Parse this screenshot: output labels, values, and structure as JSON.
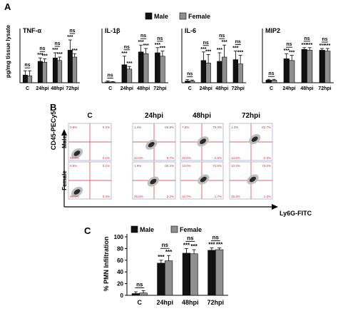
{
  "panel_labels": [
    "A",
    "B",
    "C"
  ],
  "colors": {
    "male": "#111111",
    "female": "#8f8f8f"
  },
  "legend": {
    "male": "Male",
    "female": "Female"
  },
  "panel_a": {
    "ylabel": "pg/mg tissue lysate",
    "sig_text": "ns"
  },
  "chart_data": [
    {
      "type": "bar",
      "title": "TNF-α",
      "categories": [
        "C",
        "24hpi",
        "48hpi",
        "72hpi"
      ],
      "series": [
        {
          "name": "Male",
          "values": [
            0.45,
            1.25,
            1.45,
            1.9
          ],
          "errors": [
            0.25,
            0.2,
            0.3,
            0.6
          ]
        },
        {
          "name": "Female",
          "values": [
            0.4,
            1.2,
            1.3,
            1.5
          ],
          "errors": [
            0.3,
            0.2,
            0.2,
            0.2
          ]
        }
      ],
      "ylim": [
        0,
        3
      ],
      "sig": [
        "ns",
        "ns",
        "ns",
        "ns"
      ]
    },
    {
      "type": "bar",
      "title": "IL-1β",
      "categories": [
        "C",
        "24hpi",
        "48hpi",
        "72hpi"
      ],
      "series": [
        {
          "name": "Male",
          "values": [
            0.05,
            1.05,
            1.8,
            1.75
          ],
          "errors": [
            0.05,
            0.5,
            0.4,
            0.3
          ]
        },
        {
          "name": "Female",
          "values": [
            0.04,
            0.8,
            1.7,
            1.55
          ],
          "errors": [
            0.03,
            0.15,
            0.3,
            0.3
          ]
        }
      ],
      "ylim": [
        0,
        3
      ],
      "sig": [
        "ns",
        "ns",
        "ns",
        "ns"
      ]
    },
    {
      "type": "bar",
      "title": "IL-6",
      "categories": [
        "C",
        "24hpi",
        "48hpi",
        "72hpi"
      ],
      "series": [
        {
          "name": "Male",
          "values": [
            0.1,
            1.3,
            1.25,
            1.35
          ],
          "errors": [
            0.08,
            0.5,
            0.5,
            0.5
          ]
        },
        {
          "name": "Female",
          "values": [
            0.1,
            1.15,
            1.5,
            1.1
          ],
          "errors": [
            0.06,
            0.5,
            0.7,
            0.5
          ]
        }
      ],
      "ylim": [
        0,
        3
      ],
      "sig": [
        "ns",
        "ns",
        "ns",
        "ns"
      ]
    },
    {
      "type": "bar",
      "title": "MIP2",
      "categories": [
        "C",
        "24hpi",
        "48hpi",
        "72hpi"
      ],
      "series": [
        {
          "name": "Male",
          "values": [
            0.15,
            1.4,
            1.95,
            1.9
          ],
          "errors": [
            0.05,
            0.3,
            0.1,
            0.1
          ]
        },
        {
          "name": "Female",
          "values": [
            0.15,
            1.3,
            1.9,
            1.85
          ],
          "errors": [
            0.05,
            0.3,
            0.15,
            0.15
          ]
        }
      ],
      "ylim": [
        0,
        3
      ],
      "sig": [
        "ns",
        "ns",
        "ns",
        "ns"
      ]
    },
    {
      "type": "bar",
      "title": "",
      "ylabel": "% PMN Infiltration",
      "categories": [
        "C",
        "24hpi",
        "48hpi",
        "72hpi"
      ],
      "series": [
        {
          "name": "Male",
          "values": [
            3,
            55,
            72,
            77
          ],
          "errors": [
            3,
            5,
            8,
            4
          ]
        },
        {
          "name": "Female",
          "values": [
            4,
            59,
            71,
            78
          ],
          "errors": [
            4,
            9,
            7,
            3
          ]
        }
      ],
      "ylim": [
        0,
        100
      ],
      "yticks": [
        0,
        20,
        40,
        60,
        80,
        100
      ],
      "sig": [
        "ns",
        "ns",
        "ns",
        "ns"
      ]
    }
  ],
  "panel_b": {
    "columns": [
      "C",
      "24hpi",
      "48hpi",
      "72hpi"
    ],
    "rows": [
      "Male",
      "Female"
    ],
    "y_axis": "CD45-PECy5",
    "x_axis": "Ly6G-FITC",
    "quadrants": [
      [
        [
          "0.8%",
          "0.2%",
          "98.9%",
          "0.1%"
        ],
        [
          "1.4%",
          "50.9%",
          "42.0%",
          "5.7%"
        ],
        [
          "7.6%",
          "70.0%",
          "20.0%",
          "2.5%"
        ],
        [
          "1.3%",
          "82.7%",
          "13.8%",
          "2.3%"
        ]
      ],
      [
        [
          "0.6%",
          "0.1%",
          "99.0%",
          "0.4%"
        ],
        [
          "1.9%",
          "60.4%",
          "35.6%",
          "2.2%"
        ],
        [
          "13.0%",
          "72.6%",
          "12.7%",
          "1.7%"
        ],
        [
          "10.3%",
          "73.0%",
          "15.3%",
          "1.3%"
        ]
      ]
    ]
  }
}
